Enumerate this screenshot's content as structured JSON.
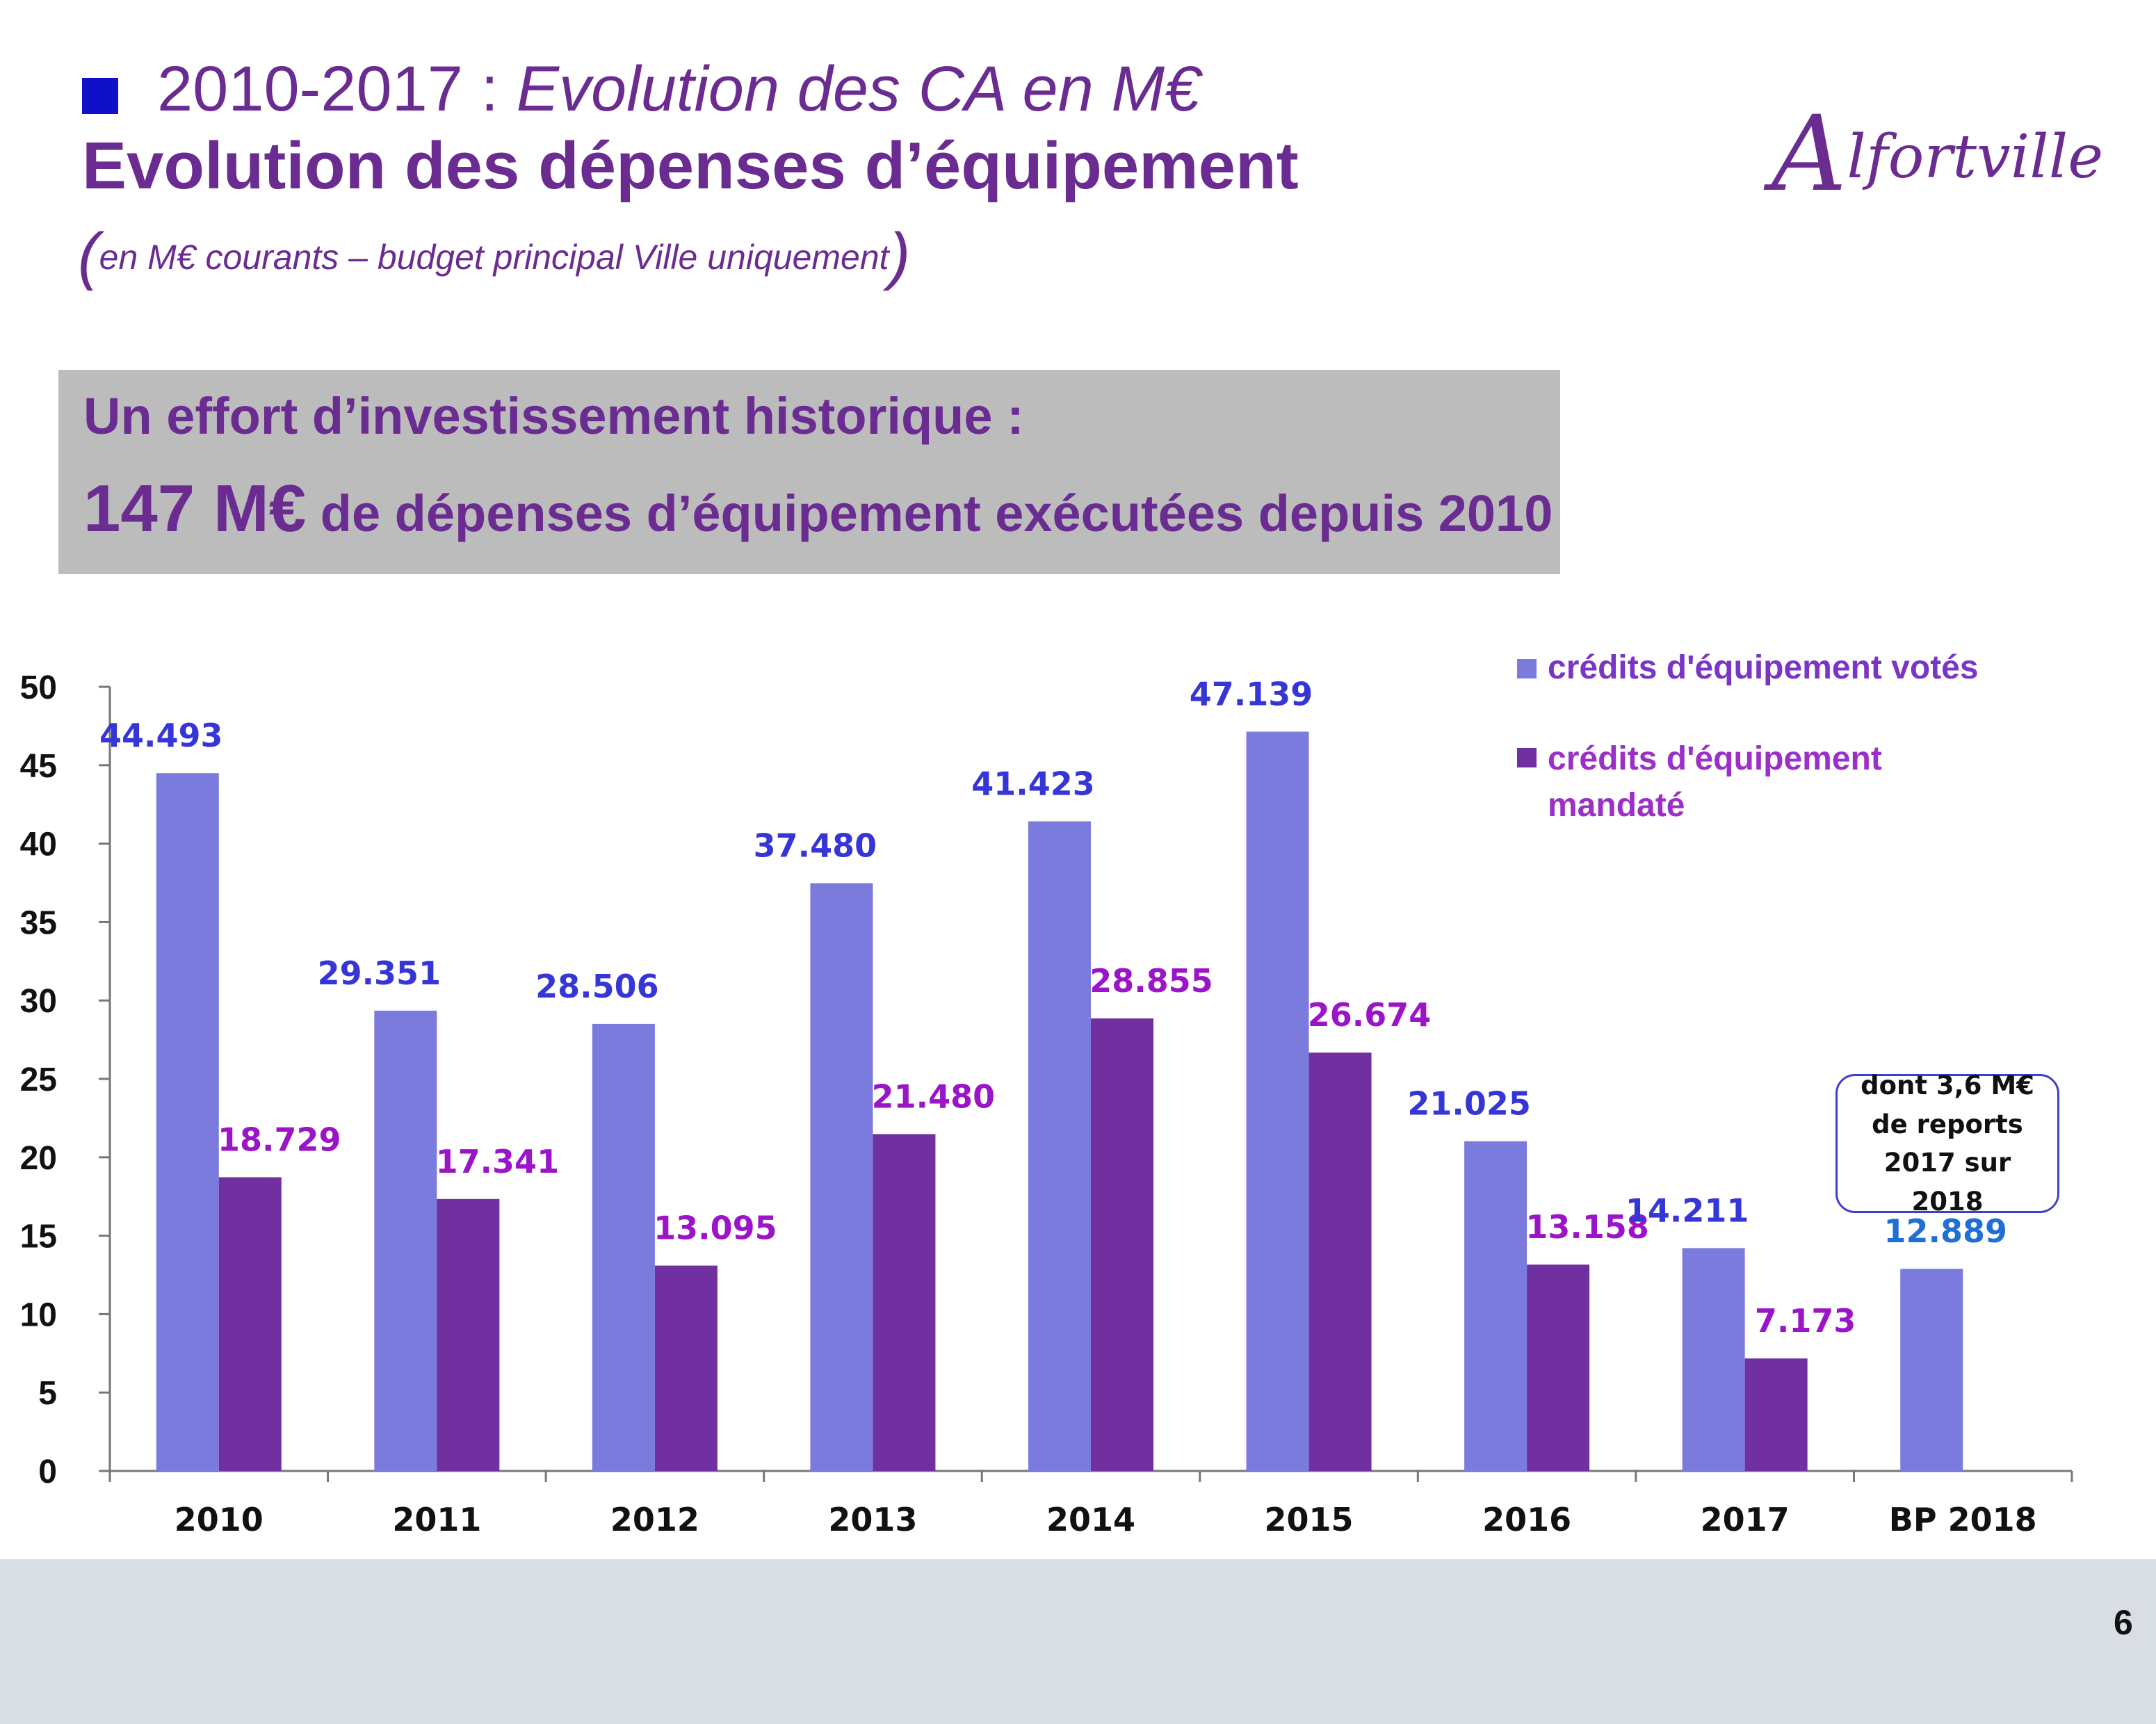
{
  "header": {
    "title_year": "2010-2017 : ",
    "title_italic": "Evolution des CA en M€",
    "title_main": "Evolution des dépenses d’équipement",
    "subtitle_open": "(",
    "subtitle": "en M€ courants – budget principal Ville uniquement",
    "subtitle_close": ")",
    "logo_initial": "A",
    "logo_rest": "lfortville"
  },
  "highlight": {
    "line1": "Un effort d’investissement historique :",
    "amount": "147 M€",
    "line2": " de dépenses d’équipement exécutées depuis 2010"
  },
  "callout": "dont 3,6 M€ de reports 2017 sur 2018",
  "page_number": "6",
  "colors": {
    "voted": "#7b7bde",
    "mandated": "#7030a0",
    "voted_label": "#3636d8",
    "mandated_label": "#9b14c8",
    "bp_label": "#1f6fd6",
    "title": "#6b2c91"
  },
  "chart_data": {
    "type": "bar",
    "categories": [
      "2010",
      "2011",
      "2012",
      "2013",
      "2014",
      "2015",
      "2016",
      "2017",
      "BP 2018"
    ],
    "series": [
      {
        "name": "crédits d'équipement votés",
        "values": [
          44.493,
          29.351,
          28.506,
          37.48,
          41.423,
          47.139,
          21.025,
          14.211,
          12.889
        ],
        "labels": [
          "44.493",
          "29.351",
          "28.506",
          "37.480",
          "41.423",
          "47.139",
          "21.025",
          "14.211",
          "12.889"
        ]
      },
      {
        "name": " crédits d'équipement mandaté",
        "values": [
          18.729,
          17.341,
          13.095,
          21.48,
          28.855,
          26.674,
          13.158,
          7.173,
          null
        ],
        "labels": [
          "18.729",
          "17.341",
          "13.095",
          "21.480",
          "28.855",
          "26.674",
          "13.158",
          "7.173",
          ""
        ]
      }
    ],
    "yticks": [
      "0",
      "5",
      "10",
      "15",
      "20",
      "25",
      "30",
      "35",
      "40",
      "45",
      "50"
    ],
    "ylim": [
      0,
      50
    ],
    "grid": false,
    "legend": "top-right"
  }
}
